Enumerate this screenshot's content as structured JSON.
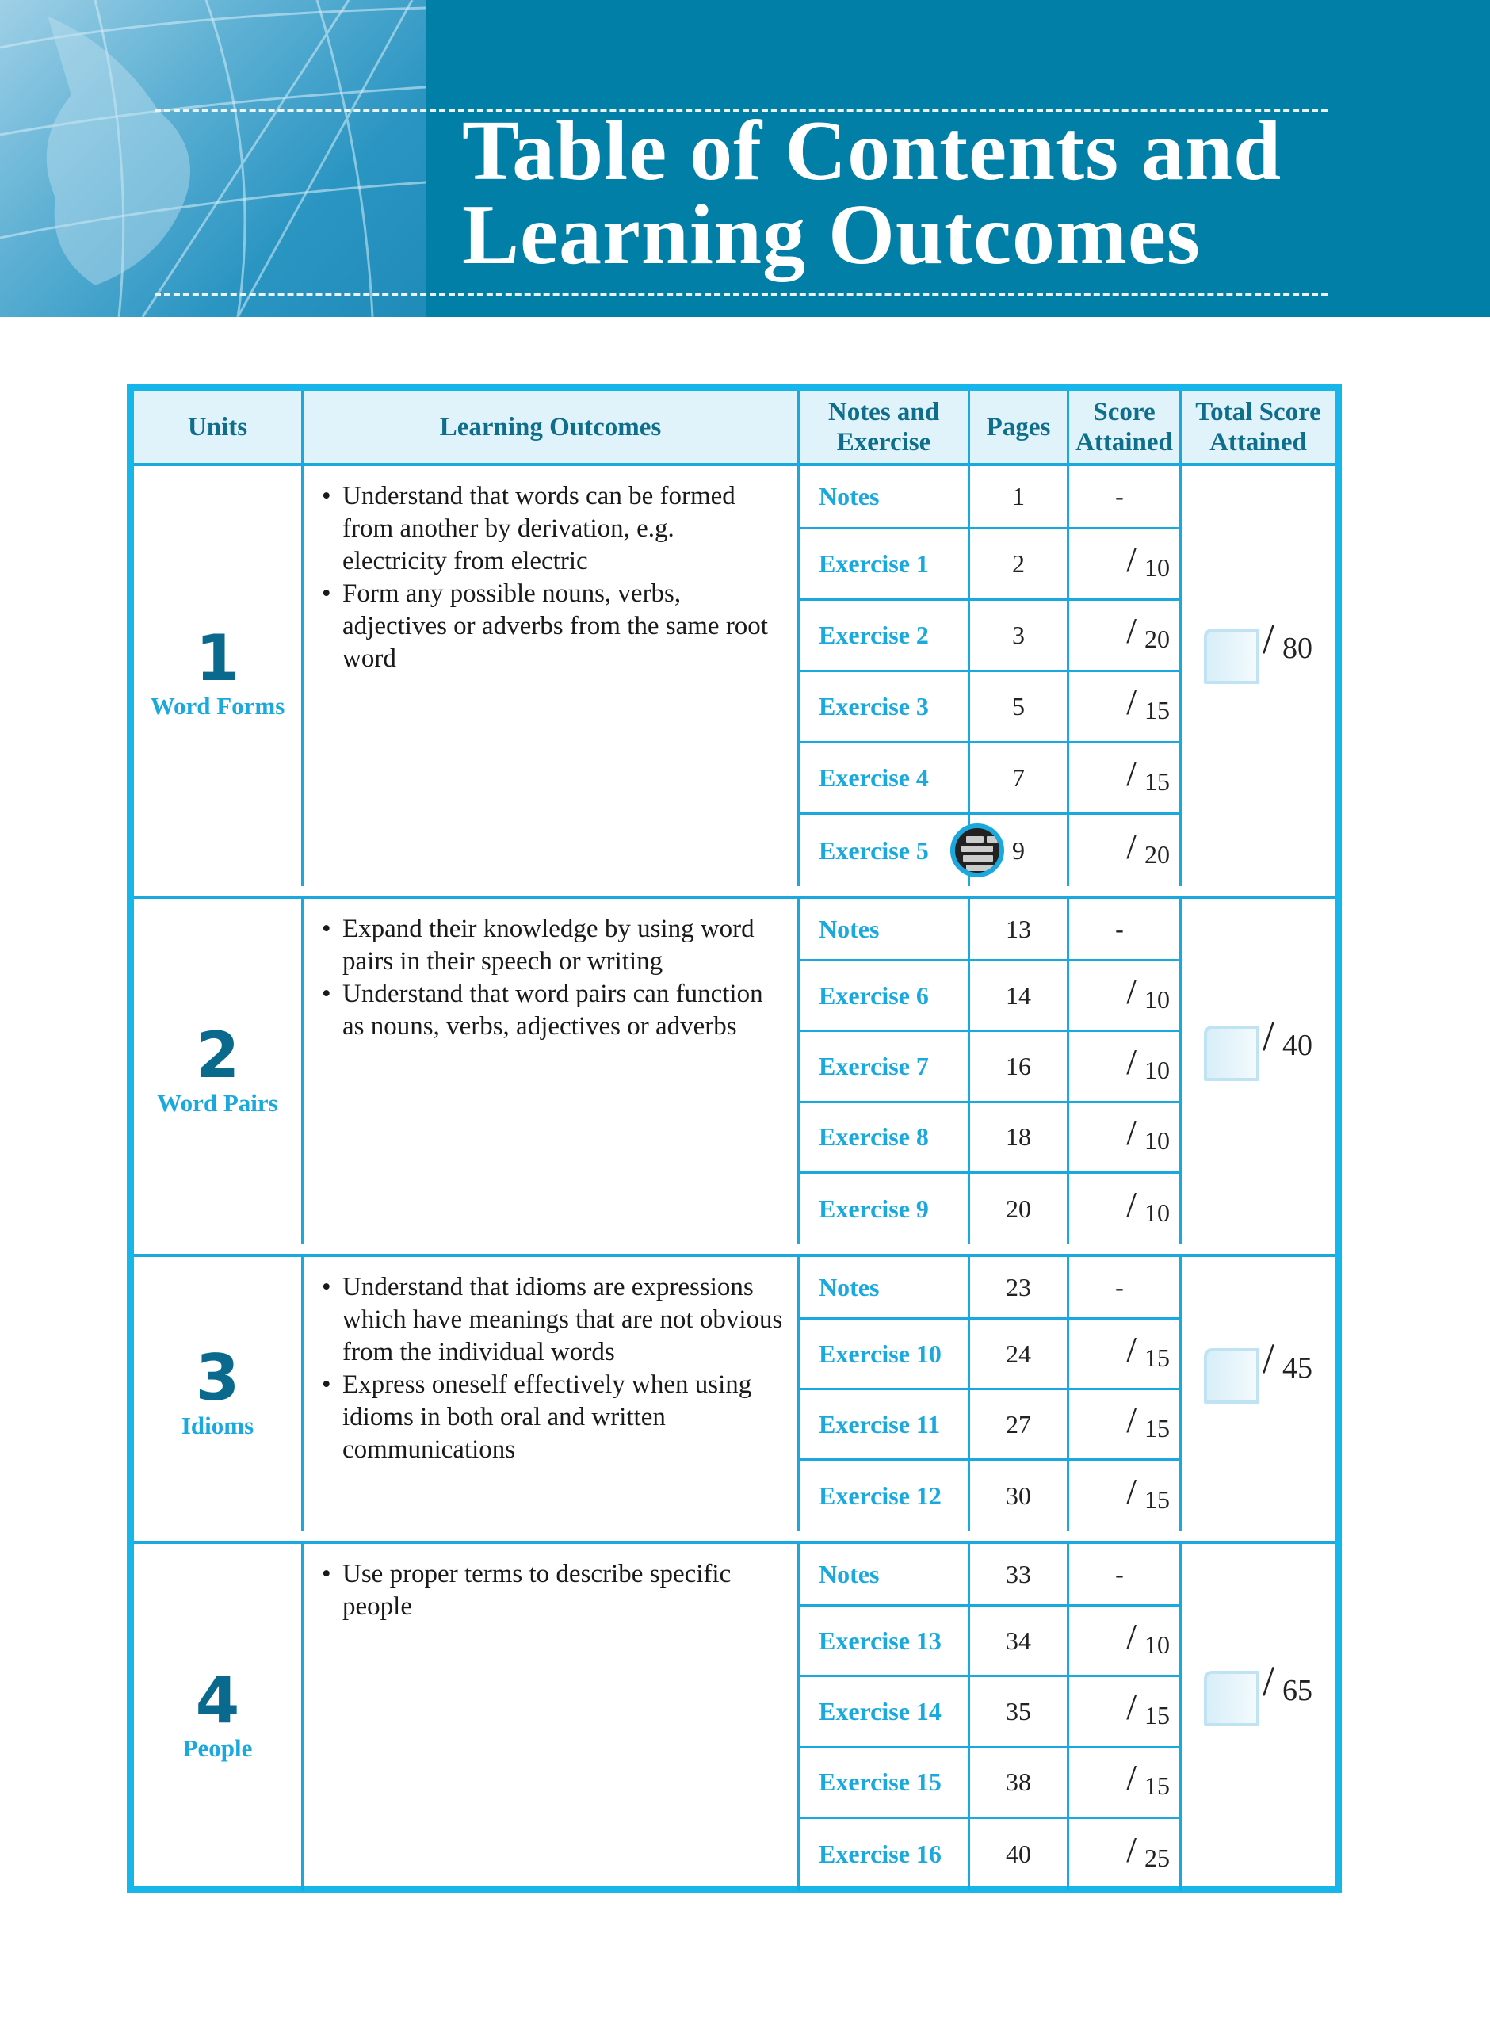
{
  "page": {
    "title_line1": "Table of Contents and",
    "title_line2": "Learning Outcomes"
  },
  "colors": {
    "banner": "#027fa6",
    "table_border": "#17b6ea",
    "header_fill": "#e0f3fb",
    "header_text": "#0e6e8c",
    "exercise_label": "#1aa9de"
  },
  "table": {
    "headers": {
      "units": "Units",
      "outcomes": "Learning Outcomes",
      "notes_exercise_1": "Notes and",
      "notes_exercise_2": "Exercise",
      "pages": "Pages",
      "score_1": "Score",
      "score_2": "Attained",
      "total_1": "Total Score",
      "total_2": "Attained"
    },
    "units": [
      {
        "number": "1",
        "name": "Word Forms",
        "total": "80",
        "outcomes": [
          "Understand that words can be formed from another by derivation, e.g. electricity from electric",
          "Form any possible nouns, verbs, adjectives or adverbs from the same root word"
        ],
        "rows": [
          {
            "label": "Notes",
            "page": "1",
            "score": "-"
          },
          {
            "label": "Exercise 1",
            "page": "2",
            "score": "10"
          },
          {
            "label": "Exercise 2",
            "page": "3",
            "score": "20"
          },
          {
            "label": "Exercise 3",
            "page": "5",
            "score": "15"
          },
          {
            "label": "Exercise 4",
            "page": "7",
            "score": "15"
          },
          {
            "label": "Exercise 5",
            "page": "9",
            "score": "20",
            "icon": "crossword-badge-icon"
          }
        ]
      },
      {
        "number": "2",
        "name": "Word Pairs",
        "total": "40",
        "outcomes": [
          "Expand their knowledge by using word pairs in their speech or writing",
          "Understand that word pairs can function as nouns, verbs, adjectives or adverbs"
        ],
        "rows": [
          {
            "label": "Notes",
            "page": "13",
            "score": "-"
          },
          {
            "label": "Exercise 6",
            "page": "14",
            "score": "10"
          },
          {
            "label": "Exercise 7",
            "page": "16",
            "score": "10"
          },
          {
            "label": "Exercise 8",
            "page": "18",
            "score": "10"
          },
          {
            "label": "Exercise 9",
            "page": "20",
            "score": "10"
          }
        ]
      },
      {
        "number": "3",
        "name": "Idioms",
        "total": "45",
        "outcomes": [
          "Understand that idioms are expressions which have meanings that are not obvious from the individual words",
          "Express oneself effectively when using idioms in both oral and written communications"
        ],
        "rows": [
          {
            "label": "Notes",
            "page": "23",
            "score": "-"
          },
          {
            "label": "Exercise 10",
            "page": "24",
            "score": "15"
          },
          {
            "label": "Exercise 11",
            "page": "27",
            "score": "15"
          },
          {
            "label": "Exercise 12",
            "page": "30",
            "score": "15"
          }
        ]
      },
      {
        "number": "4",
        "name": "People",
        "total": "65",
        "outcomes": [
          "Use proper terms to describe specific people"
        ],
        "rows": [
          {
            "label": "Notes",
            "page": "33",
            "score": "-"
          },
          {
            "label": "Exercise 13",
            "page": "34",
            "score": "10"
          },
          {
            "label": "Exercise 14",
            "page": "35",
            "score": "15"
          },
          {
            "label": "Exercise 15",
            "page": "38",
            "score": "15"
          },
          {
            "label": "Exercise 16",
            "page": "40",
            "score": "25"
          }
        ]
      }
    ]
  }
}
